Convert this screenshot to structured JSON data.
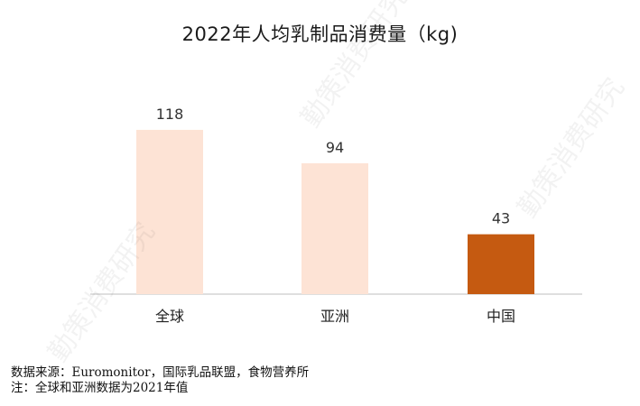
{
  "title": "2022年人均乳制品消费量（kg)",
  "chart_data": {
    "type": "bar",
    "title": "2022年人均乳制品消费量（kg)",
    "categories": [
      "全球",
      "亚洲",
      "中国"
    ],
    "values": [
      118,
      94,
      43
    ],
    "data_labels": [
      "118",
      "94",
      "43"
    ],
    "bar_colors": [
      "#fde3d5",
      "#fde3d5",
      "#c55a11"
    ],
    "ylim": [
      0,
      140
    ],
    "grid": false,
    "legend": "none",
    "xlabel": "",
    "ylabel": ""
  },
  "footer": {
    "source": "数据来源：Euromonitor，国际乳品联盟，食物营养所",
    "note": "注：全球和亚洲数据为2021年值"
  },
  "watermark": "勤策消费研究"
}
